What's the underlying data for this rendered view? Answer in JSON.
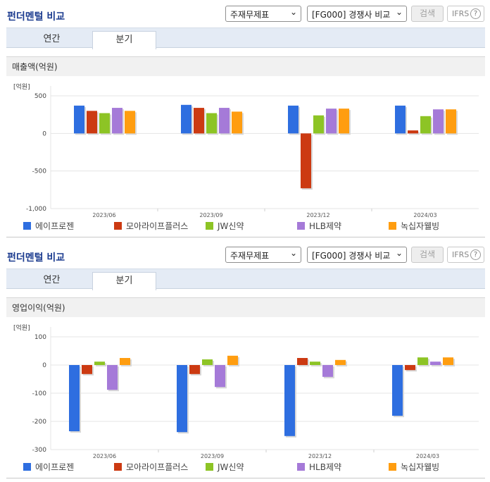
{
  "panels": [
    {
      "title": "펀더멘털 비교",
      "select1": "주재무제표",
      "select2": "[FG000] 경쟁사 비교",
      "search_label": "검색",
      "ifrs_label": "IFRS",
      "tabs": [
        "연간",
        "분기"
      ],
      "metric_label": "매출액(억원)"
    },
    {
      "title": "펀더멘털 비교",
      "select1": "주재무제표",
      "select2": "[FG000] 경쟁사 비교",
      "search_label": "검색",
      "ifrs_label": "IFRS",
      "tabs": [
        "연간",
        "분기"
      ],
      "metric_label": "영업이익(억원)"
    }
  ],
  "colors": {
    "series": [
      "#2e6ee0",
      "#cc3a12",
      "#8dc425",
      "#a57ad8",
      "#ff9d10"
    ],
    "accent_title": "#1b3b8f"
  },
  "chart_data": [
    {
      "type": "bar",
      "unit_label": "[억원]",
      "categories": [
        "2023/06",
        "2023/09",
        "2023/12",
        "2024/03"
      ],
      "ylim": [
        -1000,
        500
      ],
      "yticks": [
        500,
        0,
        -500,
        -1000
      ],
      "ytick_labels": [
        "500",
        "0",
        "-500",
        "-1,000"
      ],
      "grid": true,
      "legend_position": "bottom",
      "series": [
        {
          "name": "에이프로젠",
          "values": [
            370,
            380,
            370,
            370
          ]
        },
        {
          "name": "모아라이프플러스",
          "values": [
            300,
            340,
            -730,
            40
          ]
        },
        {
          "name": "JW신약",
          "values": [
            270,
            270,
            240,
            230
          ]
        },
        {
          "name": "HLB제약",
          "values": [
            340,
            340,
            330,
            320
          ]
        },
        {
          "name": "녹십자웰빙",
          "values": [
            300,
            290,
            330,
            320
          ]
        }
      ]
    },
    {
      "type": "bar",
      "unit_label": "[억원]",
      "categories": [
        "2023/06",
        "2023/09",
        "2023/12",
        "2024/03"
      ],
      "ylim": [
        -300,
        100
      ],
      "yticks": [
        100,
        0,
        -100,
        -200,
        -300
      ],
      "ytick_labels": [
        "100",
        "0",
        "-100",
        "-200",
        "-300"
      ],
      "grid": true,
      "legend_position": "bottom",
      "series": [
        {
          "name": "에이프로젠",
          "values": [
            -235,
            -238,
            -252,
            -180
          ]
        },
        {
          "name": "모아라이프플러스",
          "values": [
            -32,
            -32,
            25,
            -18
          ]
        },
        {
          "name": "JW신약",
          "values": [
            12,
            20,
            12,
            27
          ]
        },
        {
          "name": "HLB제약",
          "values": [
            -88,
            -78,
            -42,
            12
          ]
        },
        {
          "name": "녹십자웰빙",
          "values": [
            25,
            33,
            18,
            27
          ]
        }
      ]
    }
  ]
}
